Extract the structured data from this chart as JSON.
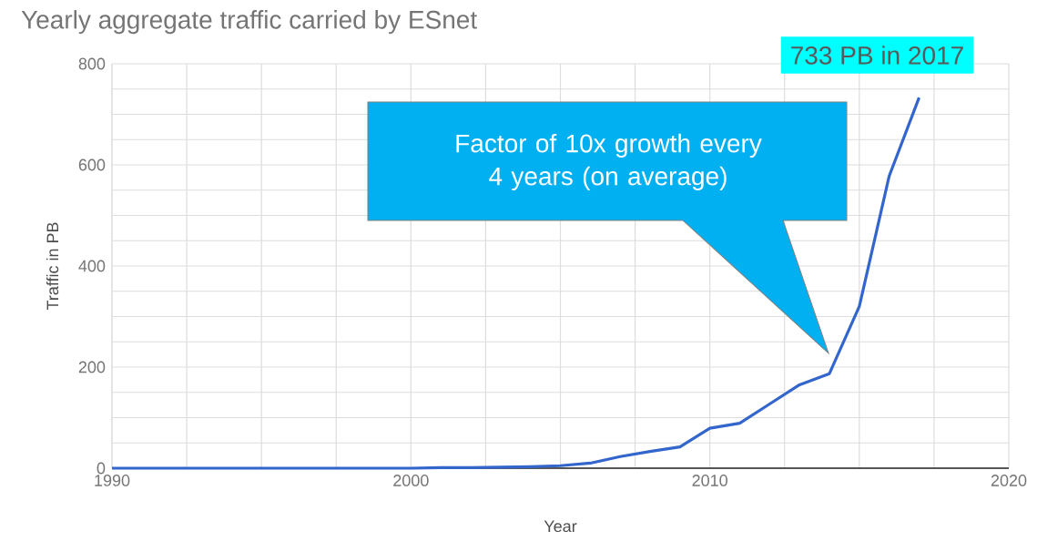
{
  "chart_data": {
    "type": "line",
    "title": "Yearly aggregate traffic carried by ESnet",
    "xlabel": "Year",
    "ylabel": "Traffic in PB",
    "x": [
      1990,
      1991,
      1992,
      1993,
      1994,
      1995,
      1996,
      1997,
      1998,
      1999,
      2000,
      2001,
      2002,
      2003,
      2004,
      2005,
      2006,
      2007,
      2008,
      2009,
      2010,
      2011,
      2012,
      2013,
      2014,
      2015,
      2016,
      2017
    ],
    "series": [
      {
        "color": "#3366cc",
        "values": [
          0,
          0,
          0,
          0,
          0,
          0,
          0,
          0,
          0,
          0,
          0,
          1,
          1,
          2,
          3,
          5,
          10,
          23,
          33,
          42,
          79,
          89,
          127,
          165,
          187,
          320,
          578,
          733
        ]
      }
    ],
    "xlim": [
      1990,
      2020
    ],
    "ylim": [
      0,
      800
    ],
    "xticks": [
      1990,
      {
        "value": 1992.5,
        "label": null
      },
      {
        "value": 1995,
        "label": null
      },
      {
        "value": 1997.5,
        "label": null
      },
      2000,
      {
        "value": 2002.5,
        "label": null
      },
      {
        "value": 2005,
        "label": null
      },
      {
        "value": 2007.5,
        "label": null
      },
      2010,
      {
        "value": 2012.5,
        "label": null
      },
      {
        "value": 2015,
        "label": null
      },
      {
        "value": 2017.5,
        "label": null
      },
      2020
    ],
    "yticks": [
      0,
      {
        "value": 50,
        "label": null
      },
      {
        "value": 100,
        "label": null
      },
      {
        "value": 150,
        "label": null
      },
      200,
      {
        "value": 250,
        "label": null
      },
      {
        "value": 300,
        "label": null
      },
      {
        "value": 350,
        "label": null
      },
      400,
      {
        "value": 450,
        "label": null
      },
      {
        "value": 500,
        "label": null
      },
      {
        "value": 550,
        "label": null
      },
      600,
      {
        "value": 650,
        "label": null
      },
      {
        "value": 700,
        "label": null
      },
      {
        "value": 750,
        "label": null
      },
      800
    ],
    "grid": true,
    "marker": "none",
    "line_style": "solid",
    "annotations": [
      {
        "text": "733 PB in 2017",
        "x": 2017,
        "y": 733
      },
      "Factor of 10x growth every 4 years (on average)"
    ]
  }
}
